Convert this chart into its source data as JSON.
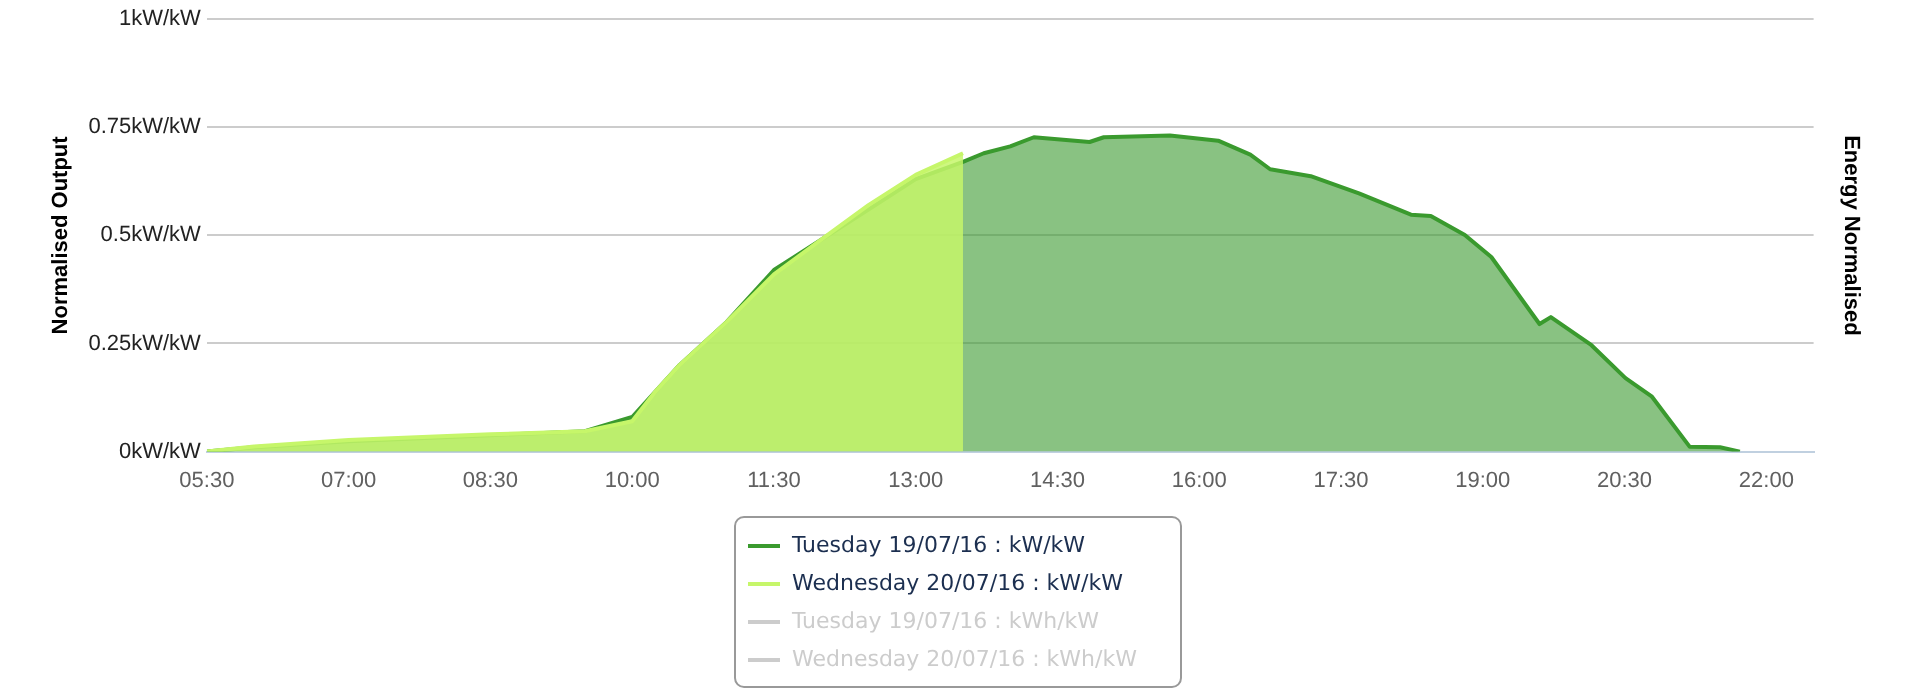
{
  "chart_data": {
    "type": "area",
    "ylabel": "Normalised Output",
    "y2label": "Energy Normalised",
    "xlim": [
      5.5,
      22.5
    ],
    "ylim": [
      0,
      1
    ],
    "xticks": [
      {
        "value": 5.5,
        "label": "05:30"
      },
      {
        "value": 7,
        "label": "07:00"
      },
      {
        "value": 8.5,
        "label": "08:30"
      },
      {
        "value": 10,
        "label": "10:00"
      },
      {
        "value": 11.5,
        "label": "11:30"
      },
      {
        "value": 13,
        "label": "13:00"
      },
      {
        "value": 14.5,
        "label": "14:30"
      },
      {
        "value": 16,
        "label": "16:00"
      },
      {
        "value": 17.5,
        "label": "17:30"
      },
      {
        "value": 19,
        "label": "19:00"
      },
      {
        "value": 20.5,
        "label": "20:30"
      },
      {
        "value": 22,
        "label": "22:00"
      }
    ],
    "yticks": [
      {
        "value": 0,
        "label": "0kW/kW"
      },
      {
        "value": 0.25,
        "label": "0.25kW/kW"
      },
      {
        "value": 0.5,
        "label": "0.5kW/kW"
      },
      {
        "value": 0.75,
        "label": "0.75kW/kW"
      },
      {
        "value": 1,
        "label": "1kW/kW"
      }
    ],
    "grid": "y",
    "legend": "bottom",
    "marker": "none",
    "series": [
      {
        "name": "Tuesday 19/07/16 : kW/kW",
        "color": "#3a9a2e",
        "x": [
          5.5,
          6,
          7,
          8.5,
          9.5,
          10,
          10.25,
          10.5,
          11,
          11.5,
          12,
          12.5,
          13,
          13.5,
          13.72,
          14,
          14.25,
          14.84,
          14.99,
          15.69,
          16.2,
          16.54,
          16.75,
          17.18,
          17.69,
          18.24,
          18.45,
          18.81,
          19.09,
          19.6,
          19.72,
          20.15,
          20.51,
          20.79,
          21.19,
          21.51,
          21.72
        ],
        "values": [
          0,
          0.01,
          0.024,
          0.038,
          0.047,
          0.08,
          0.14,
          0.2,
          0.3,
          0.42,
          0.49,
          0.56,
          0.63,
          0.67,
          0.69,
          0.706,
          0.727,
          0.716,
          0.727,
          0.731,
          0.719,
          0.687,
          0.653,
          0.637,
          0.597,
          0.548,
          0.545,
          0.501,
          0.45,
          0.295,
          0.311,
          0.246,
          0.17,
          0.127,
          0.011,
          0.01,
          0
        ]
      },
      {
        "name": "Wednesday 20/07/16 : kW/kW",
        "color": "#c6f66a",
        "x": [
          5.5,
          6,
          7,
          8.5,
          9.5,
          10,
          10.25,
          10.5,
          11,
          11.5,
          12,
          12.5,
          13,
          13.5
        ],
        "values": [
          0,
          0.012,
          0.027,
          0.04,
          0.047,
          0.07,
          0.14,
          0.2,
          0.3,
          0.41,
          0.49,
          0.57,
          0.64,
          0.69
        ]
      },
      {
        "name": "Tuesday 19/07/16 : kWh/kW",
        "color": "#cccccc"
      },
      {
        "name": "Wednesday 20/07/16 : kWh/kW",
        "color": "#cccccc"
      }
    ]
  }
}
